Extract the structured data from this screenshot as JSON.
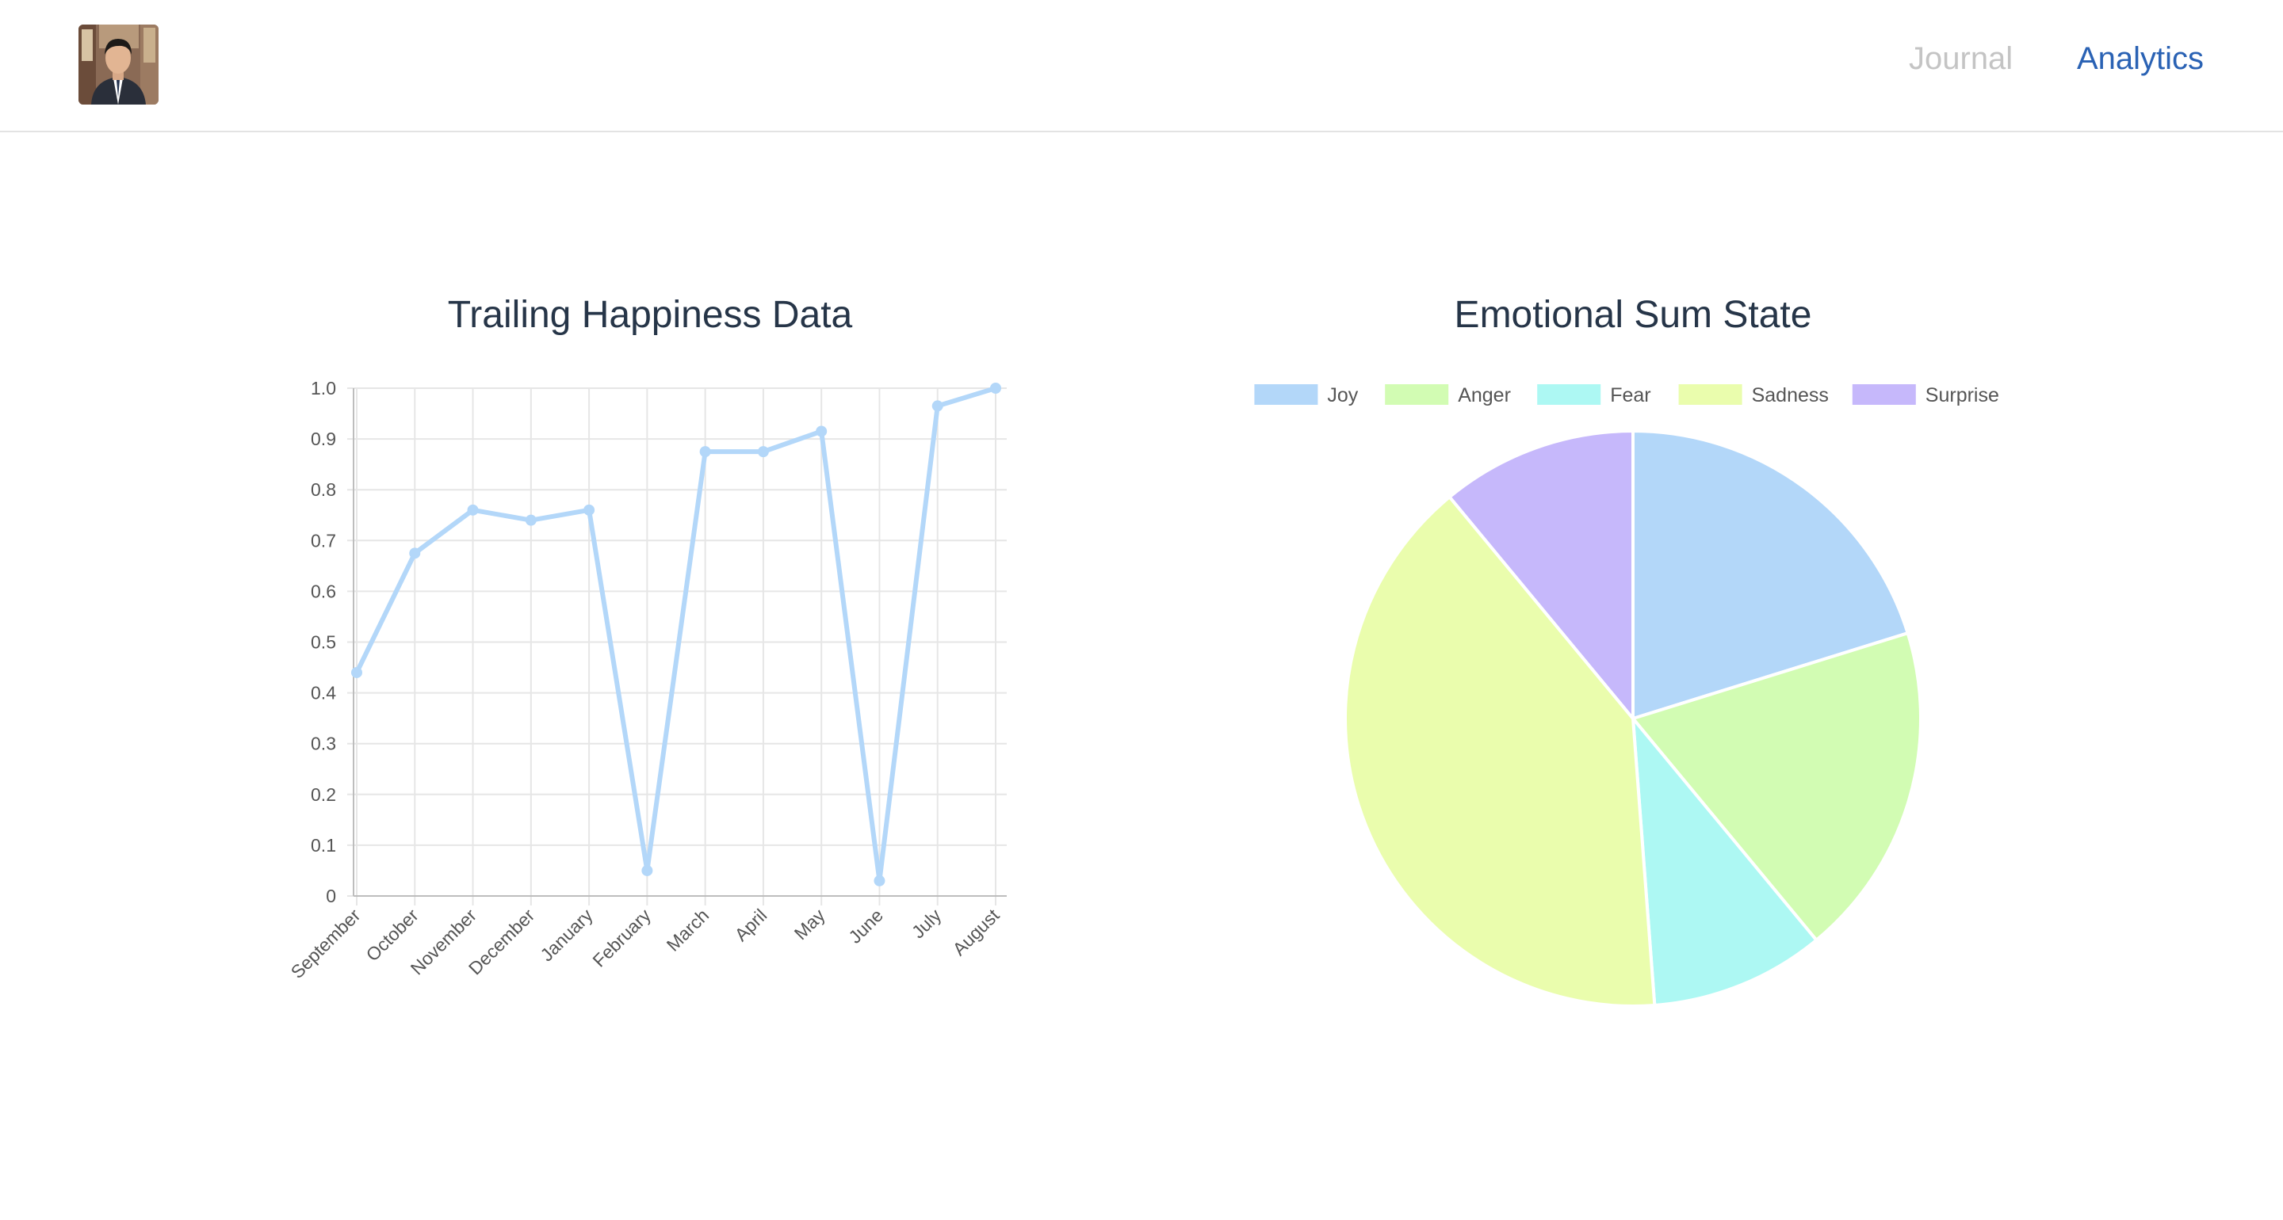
{
  "nav": {
    "journal_label": "Journal",
    "analytics_label": "Analytics",
    "active": "Analytics",
    "active_color": "#2a62b4",
    "inactive_color": "#c4c4c4"
  },
  "chart_data": [
    {
      "type": "line",
      "title": "Trailing Happiness Data",
      "categories": [
        "September",
        "October",
        "November",
        "December",
        "January",
        "February",
        "March",
        "April",
        "May",
        "June",
        "July",
        "August"
      ],
      "series": [
        {
          "values": [
            0.44,
            0.675,
            0.76,
            0.74,
            0.76,
            0.05,
            0.875,
            0.875,
            0.915,
            0.03,
            0.965,
            1.0
          ],
          "color": "#b3d7f9"
        }
      ],
      "ylim": [
        0,
        1.0
      ],
      "yticks": [
        "0",
        "0.1",
        "0.2",
        "0.3",
        "0.4",
        "0.5",
        "0.6",
        "0.7",
        "0.8",
        "0.9",
        "1.0"
      ],
      "grid": true,
      "legend": "none"
    },
    {
      "type": "pie",
      "title": "Emotional Sum State",
      "legend": "top",
      "slices": [
        {
          "label": "Joy",
          "value": 20.2,
          "color": "#b3d7f9"
        },
        {
          "label": "Anger",
          "value": 18.8,
          "color": "#d2fcb3"
        },
        {
          "label": "Fear",
          "value": 9.8,
          "color": "#adf8f3"
        },
        {
          "label": "Sadness",
          "value": 40.2,
          "color": "#eafdad"
        },
        {
          "label": "Surprise",
          "value": 11.0,
          "color": "#c6b8fb"
        }
      ]
    }
  ]
}
